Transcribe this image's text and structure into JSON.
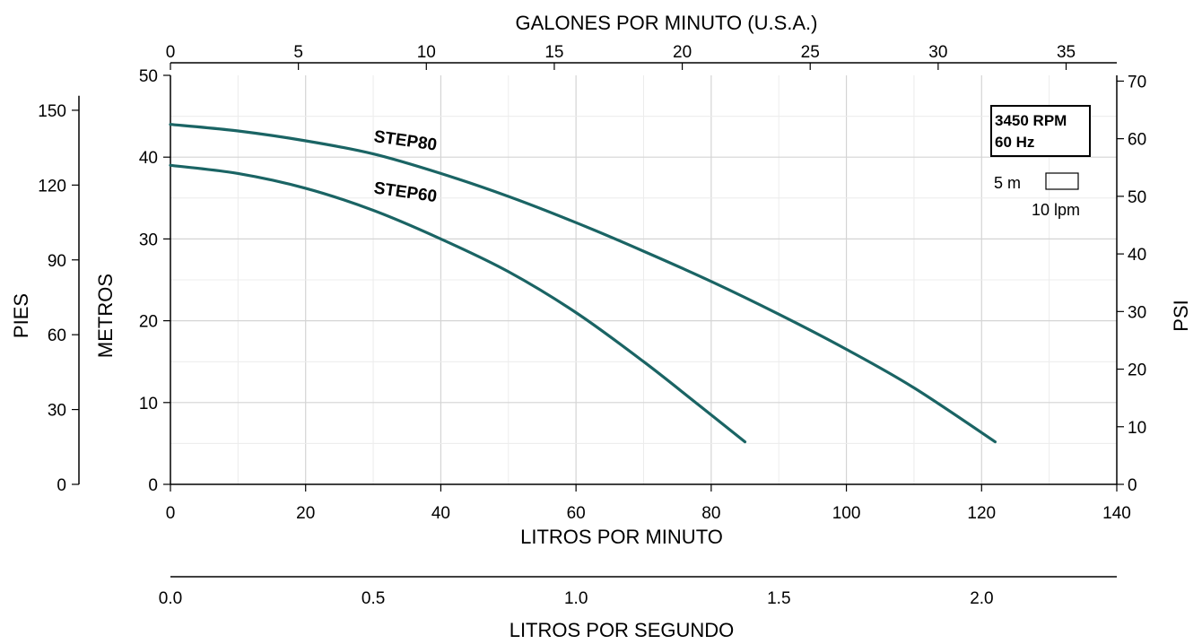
{
  "chart_data": {
    "type": "line",
    "title": "",
    "x_top": {
      "label": "GALONES POR MINUTO (U.S.A.)",
      "ticks": [
        "0",
        "5",
        "10",
        "15",
        "20",
        "25",
        "30",
        "35"
      ],
      "range": [
        0,
        36.98
      ]
    },
    "x_bottom": {
      "label": "LITROS POR MINUTO",
      "ticks": [
        "0",
        "20",
        "40",
        "60",
        "80",
        "100",
        "120",
        "140"
      ],
      "range": [
        0,
        140
      ]
    },
    "x_lps": {
      "label": "LITROS POR SEGUNDO",
      "ticks": [
        "0.0",
        "0.5",
        "1.0",
        "1.5",
        "2.0"
      ],
      "range": [
        0,
        2.333
      ]
    },
    "y_left_m": {
      "label": "METROS",
      "ticks": [
        "0",
        "10",
        "20",
        "30",
        "40",
        "50"
      ],
      "range": [
        0,
        50
      ]
    },
    "y_left_ft": {
      "label": "PIES",
      "ticks": [
        "0",
        "30",
        "60",
        "90",
        "120",
        "150"
      ],
      "range": [
        0,
        164
      ]
    },
    "y_right_psi": {
      "label": "PSI",
      "ticks": [
        "0",
        "10",
        "20",
        "30",
        "40",
        "50",
        "60",
        "70"
      ],
      "range": [
        0,
        71
      ]
    },
    "grid": true,
    "series": [
      {
        "name": "STEP80",
        "color": "#1a6464",
        "x": [
          0,
          10,
          20,
          30,
          40,
          50,
          60,
          70,
          80,
          90,
          100,
          110,
          122
        ],
        "y": [
          44,
          43.2,
          42,
          40.4,
          38,
          35.2,
          32,
          28.5,
          24.8,
          20.8,
          16.5,
          11.8,
          5.2
        ]
      },
      {
        "name": "STEP60",
        "color": "#1a6464",
        "x": [
          0,
          10,
          20,
          30,
          40,
          50,
          60,
          70,
          78,
          85
        ],
        "y": [
          39,
          38,
          36.2,
          33.5,
          30,
          26,
          21,
          15,
          9.8,
          5.2
        ]
      }
    ],
    "annotations": {
      "rpm": "3450 RPM",
      "hz": "60 Hz",
      "scale_m": "5 m",
      "scale_lpm": "10 lpm"
    }
  }
}
